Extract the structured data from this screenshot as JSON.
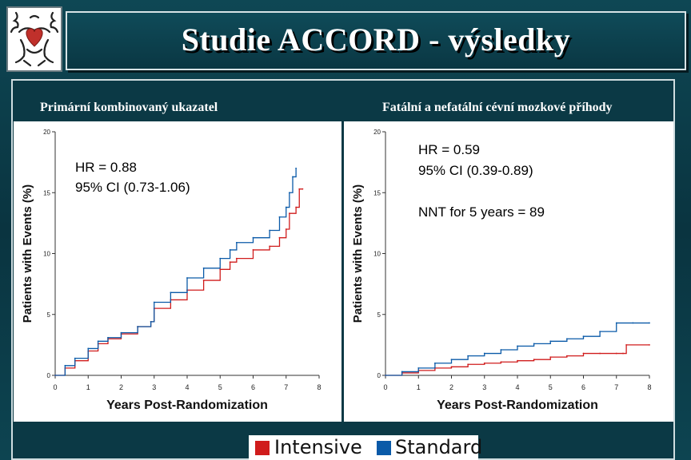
{
  "title": "Studie ACCORD - výsledky",
  "logo": {
    "icon": "heraldic-lion-heart-icon",
    "colors": [
      "#c0302b",
      "#222222"
    ]
  },
  "left_panel": {
    "subtitle": "Primární kombinovaný ukazatel",
    "hr_line1": "HR = 0.88",
    "hr_line2": "95% CI (0.73-1.06)"
  },
  "right_panel": {
    "subtitle": "Fatální a nefatální cévní mozkové příhody",
    "hr_line1": "HR = 0.59",
    "hr_line2": "95% CI (0.39-0.89)",
    "nnt": "NNT for 5 years = 89"
  },
  "legend": {
    "intensive_label": "Intensive",
    "standard_label": "Standard",
    "intensive_color": "#d01c1c",
    "standard_color": "#0a5aa8"
  },
  "chart_data": [
    {
      "type": "line",
      "xlabel": "Years Post-Randomization",
      "ylabel": "Patients with Events (%)",
      "xlim": [
        0,
        8
      ],
      "ylim": [
        0,
        20
      ],
      "x_ticks": [
        "0",
        "1",
        "2",
        "3",
        "4",
        "5",
        "6",
        "7",
        "8"
      ],
      "y_ticks": [
        "0",
        "5",
        "10",
        "15",
        "20"
      ],
      "series": [
        {
          "name": "Intensive",
          "color": "#d01c1c",
          "x": [
            0,
            0.3,
            0.6,
            1.0,
            1.3,
            1.6,
            2.0,
            2.5,
            2.9,
            3.0,
            3.5,
            4.0,
            4.5,
            5.0,
            5.3,
            5.5,
            6.0,
            6.5,
            6.8,
            7.0,
            7.1,
            7.3,
            7.4,
            7.5
          ],
          "y": [
            0,
            0.6,
            1.2,
            2.0,
            2.6,
            3.0,
            3.4,
            4.0,
            4.4,
            5.5,
            6.2,
            7.0,
            7.8,
            8.7,
            9.3,
            9.6,
            10.3,
            10.6,
            11.3,
            12.0,
            13.3,
            13.8,
            15.3,
            15.3
          ]
        },
        {
          "name": "Standard",
          "color": "#0a5aa8",
          "x": [
            0,
            0.3,
            0.6,
            1.0,
            1.3,
            1.6,
            2.0,
            2.5,
            2.9,
            3.0,
            3.5,
            4.0,
            4.5,
            5.0,
            5.3,
            5.5,
            6.0,
            6.5,
            6.8,
            7.0,
            7.1,
            7.2,
            7.3
          ],
          "y": [
            0,
            0.8,
            1.4,
            2.2,
            2.8,
            3.1,
            3.5,
            4.0,
            4.4,
            6.0,
            6.8,
            8.0,
            8.8,
            9.6,
            10.3,
            10.9,
            11.3,
            11.9,
            13.0,
            13.8,
            15.0,
            16.3,
            17.0
          ]
        }
      ]
    },
    {
      "type": "line",
      "xlabel": "Years Post-Randomization",
      "ylabel": "Patients with Events (%)",
      "xlim": [
        0,
        8
      ],
      "ylim": [
        0,
        20
      ],
      "x_ticks": [
        "0",
        "1",
        "2",
        "3",
        "4",
        "5",
        "6",
        "7",
        "8"
      ],
      "y_ticks": [
        "0",
        "5",
        "10",
        "15",
        "20"
      ],
      "series": [
        {
          "name": "Intensive",
          "color": "#d01c1c",
          "x": [
            0,
            0.5,
            1.0,
            1.5,
            2.0,
            2.5,
            3.0,
            3.5,
            4.0,
            4.5,
            5.0,
            5.5,
            6.0,
            6.5,
            7.0,
            7.2,
            7.3,
            8.0
          ],
          "y": [
            0,
            0.2,
            0.4,
            0.6,
            0.7,
            0.9,
            1.0,
            1.1,
            1.2,
            1.3,
            1.5,
            1.6,
            1.8,
            1.8,
            1.8,
            1.8,
            2.5,
            2.5
          ]
        },
        {
          "name": "Standard",
          "color": "#0a5aa8",
          "x": [
            0,
            0.5,
            1.0,
            1.5,
            2.0,
            2.5,
            3.0,
            3.5,
            4.0,
            4.5,
            5.0,
            5.5,
            6.0,
            6.5,
            7.0,
            7.5,
            8.0
          ],
          "y": [
            0,
            0.3,
            0.6,
            1.0,
            1.3,
            1.6,
            1.8,
            2.1,
            2.4,
            2.6,
            2.8,
            3.0,
            3.2,
            3.6,
            4.3,
            4.3,
            4.3
          ]
        }
      ]
    }
  ]
}
